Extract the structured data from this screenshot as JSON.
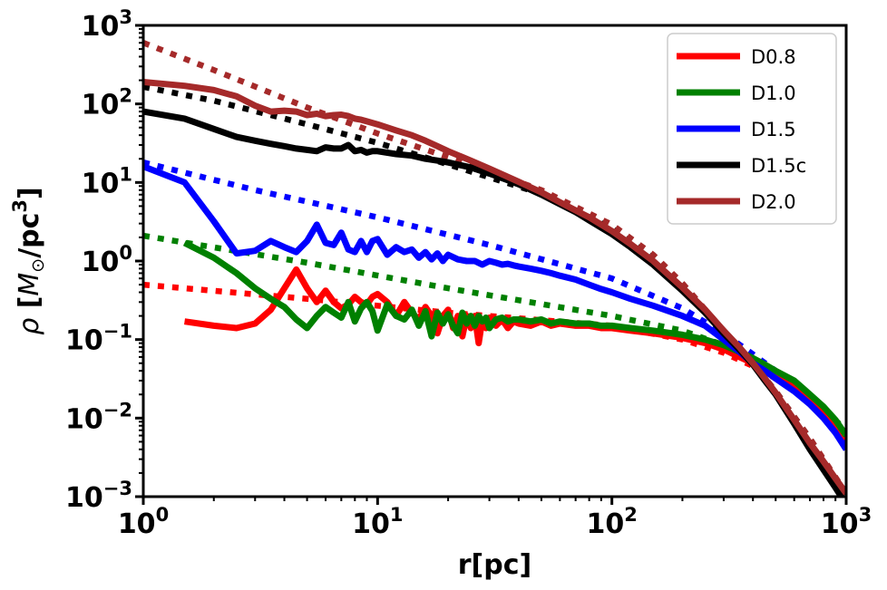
{
  "chart_data": {
    "type": "line",
    "xscale": "log",
    "yscale": "log",
    "xlim": [
      1,
      1000
    ],
    "ylim": [
      0.001,
      1000
    ],
    "xlabel": "r[pc]",
    "ylabel": "ρ [M⊙/pc3]",
    "ylabel_parts": {
      "rho": "ρ",
      "open": " [",
      "M": "M",
      "sun": "⊙",
      "mid": "/pc",
      "exp": "3",
      "close": "]"
    },
    "xticks": [
      {
        "value": 1,
        "base": "10",
        "exp": "0"
      },
      {
        "value": 10,
        "base": "10",
        "exp": "1"
      },
      {
        "value": 100,
        "base": "10",
        "exp": "2"
      },
      {
        "value": 1000,
        "base": "10",
        "exp": "3"
      }
    ],
    "yticks": [
      {
        "value": 0.001,
        "base": "10",
        "exp": "−3"
      },
      {
        "value": 0.01,
        "base": "10",
        "exp": "−2"
      },
      {
        "value": 0.1,
        "base": "10",
        "exp": "−1"
      },
      {
        "value": 1,
        "base": "10",
        "exp": "0"
      },
      {
        "value": 10,
        "base": "10",
        "exp": "1"
      },
      {
        "value": 100,
        "base": "10",
        "exp": "2"
      },
      {
        "value": 1000,
        "base": "10",
        "exp": "3"
      }
    ],
    "legend_position": "top-right",
    "series": [
      {
        "name": "D0.8",
        "color": "#ff0000",
        "x": [
          1.5,
          2,
          2.5,
          3,
          3.5,
          4,
          4.5,
          5,
          5.5,
          6,
          6.5,
          7,
          7.5,
          8,
          8.5,
          9,
          9.5,
          10,
          11,
          12,
          13,
          14,
          15,
          16,
          17,
          18,
          19,
          20,
          21,
          22,
          23,
          24,
          25,
          26,
          27,
          28,
          29,
          30,
          32,
          34,
          36,
          38,
          40,
          45,
          50,
          55,
          60,
          70,
          80,
          90,
          100,
          120,
          150,
          200,
          250,
          300,
          350,
          400,
          450,
          500,
          600,
          700,
          800,
          900,
          1000
        ],
        "y": [
          0.17,
          0.15,
          0.14,
          0.16,
          0.24,
          0.45,
          0.78,
          0.45,
          0.3,
          0.42,
          0.3,
          0.25,
          0.28,
          0.35,
          0.3,
          0.28,
          0.35,
          0.38,
          0.3,
          0.2,
          0.3,
          0.22,
          0.18,
          0.26,
          0.2,
          0.12,
          0.2,
          0.24,
          0.14,
          0.2,
          0.11,
          0.2,
          0.14,
          0.2,
          0.09,
          0.18,
          0.14,
          0.19,
          0.15,
          0.18,
          0.14,
          0.17,
          0.16,
          0.15,
          0.17,
          0.15,
          0.16,
          0.15,
          0.15,
          0.14,
          0.14,
          0.13,
          0.12,
          0.105,
          0.09,
          0.075,
          0.06,
          0.05,
          0.042,
          0.035,
          0.025,
          0.017,
          0.012,
          0.008,
          0.0055
        ]
      },
      {
        "name": "D1.0",
        "color": "#008000",
        "x": [
          1.5,
          2,
          2.5,
          3,
          3.5,
          4,
          4.5,
          5,
          5.5,
          6,
          6.5,
          7,
          7.5,
          8,
          8.5,
          9,
          9.5,
          10,
          11,
          12,
          13,
          14,
          15,
          16,
          17,
          18,
          19,
          20,
          21,
          22,
          23,
          24,
          25,
          26,
          27,
          28,
          29,
          30,
          32,
          34,
          36,
          38,
          40,
          45,
          50,
          55,
          60,
          70,
          80,
          90,
          100,
          120,
          150,
          200,
          250,
          300,
          350,
          400,
          450,
          500,
          600,
          700,
          800,
          900,
          1000
        ],
        "y": [
          1.7,
          1.1,
          0.7,
          0.45,
          0.33,
          0.26,
          0.18,
          0.14,
          0.2,
          0.26,
          0.22,
          0.19,
          0.3,
          0.17,
          0.25,
          0.3,
          0.23,
          0.13,
          0.28,
          0.2,
          0.18,
          0.24,
          0.15,
          0.23,
          0.11,
          0.22,
          0.16,
          0.21,
          0.15,
          0.12,
          0.22,
          0.16,
          0.2,
          0.15,
          0.2,
          0.17,
          0.19,
          0.14,
          0.18,
          0.19,
          0.17,
          0.18,
          0.18,
          0.17,
          0.18,
          0.16,
          0.17,
          0.16,
          0.16,
          0.15,
          0.15,
          0.14,
          0.13,
          0.115,
          0.1,
          0.085,
          0.07,
          0.058,
          0.048,
          0.04,
          0.03,
          0.02,
          0.014,
          0.0095,
          0.006
        ]
      },
      {
        "name": "D1.5",
        "color": "#0000ff",
        "x": [
          1,
          1.5,
          2,
          2.5,
          3,
          3.5,
          4,
          4.5,
          5,
          5.5,
          6,
          6.5,
          7,
          7.5,
          8,
          8.5,
          9,
          9.5,
          10,
          11,
          12,
          13,
          14,
          15,
          16,
          17,
          18,
          19,
          20,
          22,
          24,
          26,
          28,
          30,
          32,
          34,
          36,
          38,
          40,
          45,
          50,
          55,
          60,
          70,
          80,
          90,
          100,
          120,
          150,
          200,
          250,
          300,
          350,
          400,
          450,
          500,
          600,
          700,
          800,
          900,
          1000
        ],
        "y": [
          16,
          10,
          3.2,
          1.25,
          1.35,
          1.8,
          1.5,
          1.3,
          1.8,
          2.9,
          1.7,
          1.6,
          2.3,
          1.4,
          1.3,
          1.8,
          1.3,
          1.8,
          1.9,
          1.2,
          1.5,
          1.3,
          1.4,
          1.1,
          1.3,
          1.05,
          1.25,
          1.0,
          1.2,
          1.05,
          1.0,
          1.0,
          0.9,
          1.0,
          0.95,
          0.9,
          0.92,
          0.88,
          0.85,
          0.8,
          0.75,
          0.7,
          0.65,
          0.58,
          0.5,
          0.44,
          0.4,
          0.33,
          0.27,
          0.2,
          0.15,
          0.1,
          0.07,
          0.05,
          0.04,
          0.032,
          0.022,
          0.015,
          0.01,
          0.0065,
          0.004
        ]
      },
      {
        "name": "D1.5c",
        "color": "#000000",
        "x": [
          1,
          1.5,
          2,
          2.5,
          3,
          3.5,
          4,
          4.5,
          5,
          5.5,
          6,
          6.5,
          7,
          7.5,
          8,
          8.5,
          9,
          9.5,
          10,
          12,
          14,
          16,
          18,
          20,
          25,
          30,
          35,
          40,
          50,
          60,
          70,
          80,
          100,
          120,
          150,
          200,
          250,
          300,
          350,
          400,
          450,
          500,
          600,
          700,
          800,
          900,
          1000
        ],
        "y": [
          80,
          65,
          48,
          38,
          34,
          31,
          29,
          27,
          26,
          25,
          28,
          27,
          27,
          30,
          25,
          26,
          24,
          25,
          25,
          23,
          22,
          20,
          19,
          18,
          15.5,
          13,
          11,
          9.5,
          7,
          5.3,
          4.2,
          3.3,
          2.2,
          1.5,
          0.9,
          0.42,
          0.22,
          0.12,
          0.075,
          0.048,
          0.03,
          0.02,
          0.0085,
          0.004,
          0.0022,
          0.0013,
          0.0008
        ]
      },
      {
        "name": "D2.0",
        "color": "#a52a2a",
        "x": [
          1,
          1.5,
          2,
          2.5,
          3,
          3.5,
          4,
          4.5,
          5,
          5.5,
          6,
          6.5,
          7,
          7.5,
          8,
          8.5,
          9,
          10,
          12,
          14,
          16,
          18,
          20,
          25,
          30,
          35,
          40,
          50,
          60,
          70,
          80,
          100,
          120,
          150,
          200,
          250,
          300,
          350,
          400,
          450,
          500,
          600,
          700,
          800,
          900,
          1000
        ],
        "y": [
          190,
          170,
          150,
          125,
          95,
          80,
          82,
          80,
          72,
          75,
          70,
          72,
          73,
          70,
          65,
          63,
          60,
          55,
          46,
          40,
          34,
          29,
          25,
          19,
          15,
          12.2,
          10.2,
          7.5,
          5.6,
          4.4,
          3.6,
          2.4,
          1.65,
          1.0,
          0.46,
          0.24,
          0.13,
          0.08,
          0.05,
          0.032,
          0.021,
          0.0095,
          0.0048,
          0.0028,
          0.0017,
          0.0011
        ]
      }
    ],
    "fits": [
      {
        "name": "D0.8 fit",
        "color": "#ff0000",
        "x": [
          1,
          5,
          20,
          100,
          200,
          300,
          400,
          500,
          700,
          1000
        ],
        "y": [
          0.5,
          0.33,
          0.22,
          0.15,
          0.1,
          0.068,
          0.046,
          0.032,
          0.016,
          0.006
        ]
      },
      {
        "name": "D1.0 fit",
        "color": "#008000",
        "x": [
          1,
          5,
          20,
          100,
          200,
          300,
          400,
          500,
          700,
          1000
        ],
        "y": [
          2.1,
          0.95,
          0.45,
          0.2,
          0.13,
          0.085,
          0.055,
          0.038,
          0.019,
          0.007
        ]
      },
      {
        "name": "D1.5 fit",
        "color": "#0000ff",
        "x": [
          1,
          3,
          10,
          30,
          100,
          200,
          300,
          400,
          500,
          700,
          1000
        ],
        "y": [
          18,
          8,
          3.6,
          1.6,
          0.6,
          0.25,
          0.12,
          0.065,
          0.04,
          0.016,
          0.0045
        ]
      },
      {
        "name": "D1.5c fit",
        "color": "#000000",
        "x": [
          1,
          2,
          5,
          10,
          20,
          50,
          100,
          150,
          200,
          300,
          400,
          500,
          700,
          1000
        ],
        "y": [
          165,
          110,
          55,
          32,
          17,
          7.2,
          2.6,
          1.1,
          0.5,
          0.13,
          0.05,
          0.022,
          0.0055,
          0.001
        ]
      },
      {
        "name": "D2.0 fit",
        "color": "#a52a2a",
        "x": [
          1,
          2,
          5,
          10,
          20,
          50,
          100,
          150,
          200,
          300,
          400,
          500,
          700,
          1000
        ],
        "y": [
          600,
          270,
          90,
          42,
          21,
          8,
          2.9,
          1.2,
          0.52,
          0.13,
          0.05,
          0.022,
          0.0055,
          0.0011
        ]
      }
    ]
  }
}
